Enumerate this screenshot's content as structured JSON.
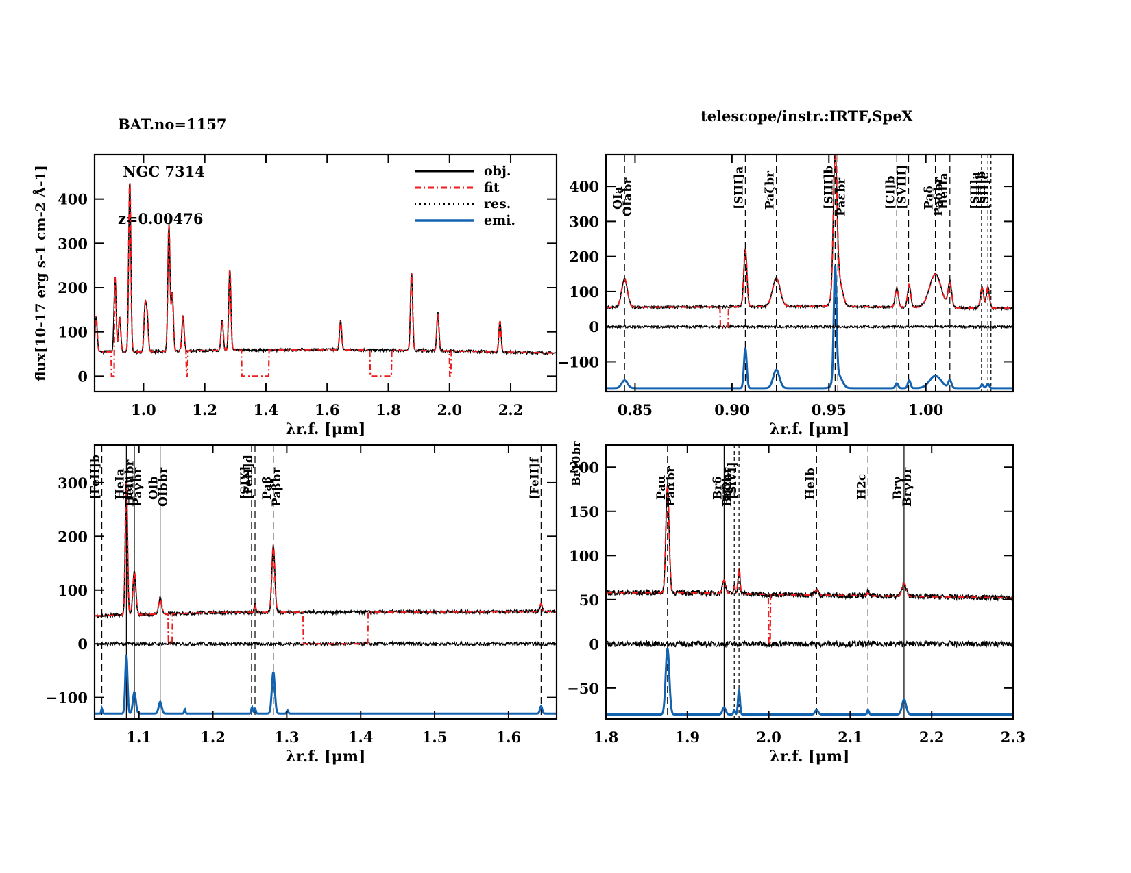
{
  "header": {
    "object_lines": [
      "BAT.no=1157",
      " NGC 7314",
      "z=0.00476"
    ],
    "telescope": "telescope/instr.:IRTF,SpeX"
  },
  "colors": {
    "obj": "#000000",
    "fit": "#ee1c1c",
    "res": "#000000",
    "emi": "#1463b0",
    "axis": "#000000"
  },
  "chart_data": [
    {
      "id": "full",
      "type": "line",
      "title": "",
      "xlabel": "λ_r.f. [μm]",
      "ylabel": "flux[10^-17 erg s^-1 cm^-2 Å^-1]",
      "xlim": [
        0.84,
        2.35
      ],
      "ylim": [
        -35,
        500
      ],
      "xticks": [
        1.0,
        1.2,
        1.4,
        1.6,
        1.8,
        2.0,
        2.2
      ],
      "xtick_labels": [
        "1.0",
        "1.2",
        "1.4",
        "1.6",
        "1.8",
        "2.0",
        "2.2"
      ],
      "yticks": [
        0,
        100,
        200,
        300,
        400
      ],
      "ytick_labels": [
        "0",
        "100",
        "200",
        "300",
        "400"
      ],
      "legend": {
        "placement": "top-right",
        "entries": [
          "obj.",
          "fit",
          "res.",
          "emi."
        ]
      },
      "continuum": [
        [
          0.84,
          55
        ],
        [
          1.0,
          55
        ],
        [
          1.2,
          58
        ],
        [
          1.6,
          60
        ],
        [
          2.0,
          57
        ],
        [
          2.35,
          52
        ]
      ],
      "peaks": [
        [
          0.845,
          80
        ],
        [
          0.907,
          168
        ],
        [
          0.922,
          80
        ],
        [
          0.955,
          390
        ],
        [
          1.005,
          100
        ],
        [
          1.012,
          80
        ],
        [
          1.083,
          285
        ],
        [
          1.094,
          130
        ],
        [
          1.129,
          80
        ],
        [
          1.257,
          70
        ],
        [
          1.282,
          185
        ],
        [
          1.644,
          65
        ],
        [
          1.876,
          178
        ],
        [
          1.962,
          85
        ],
        [
          2.165,
          70
        ]
      ],
      "fit_gaps": [
        [
          0.895,
          0.905
        ],
        [
          1.14,
          1.145
        ],
        [
          1.32,
          1.41
        ],
        [
          1.74,
          1.81
        ],
        [
          2.0,
          2.005
        ]
      ],
      "series": [
        {
          "name": "obj.",
          "style": "solid"
        },
        {
          "name": "fit",
          "style": "dashdot"
        },
        {
          "name": "res.",
          "style": "dotted"
        },
        {
          "name": "emi.",
          "style": "solid"
        }
      ]
    },
    {
      "id": "z-band",
      "type": "line",
      "xlabel": "λ_r.f. [μm]",
      "xlim": [
        0.835,
        1.045
      ],
      "ylim": [
        -185,
        490
      ],
      "xticks": [
        0.85,
        0.9,
        0.95,
        1.0
      ],
      "xtick_labels": [
        "0.85",
        "0.90",
        "0.95",
        "1.00"
      ],
      "yticks": [
        -100,
        0,
        100,
        200,
        300,
        400
      ],
      "ytick_labels": [
        "−100",
        "0",
        "100",
        "200",
        "300",
        "400"
      ],
      "continuum": [
        [
          0.835,
          55
        ],
        [
          0.95,
          58
        ],
        [
          1.045,
          52
        ]
      ],
      "emi_base": -175,
      "peaks": [
        [
          0.8446,
          80,
          0.0015
        ],
        [
          0.9069,
          165,
          0.0008
        ],
        [
          0.9229,
          80,
          0.002
        ],
        [
          0.9532,
          380,
          0.0009
        ],
        [
          0.9546,
          90,
          0.002
        ],
        [
          0.985,
          55,
          0.0008
        ],
        [
          0.9914,
          65,
          0.0008
        ],
        [
          1.0049,
          95,
          0.003
        ],
        [
          1.0124,
          70,
          0.0009
        ],
        [
          1.029,
          58,
          0.0008
        ],
        [
          1.032,
          60,
          0.0008
        ]
      ],
      "emi_peaks": [
        [
          0.8446,
          22,
          0.0015
        ],
        [
          0.9069,
          115,
          0.0007
        ],
        [
          0.9229,
          52,
          0.0016
        ],
        [
          0.9532,
          320,
          0.0007
        ],
        [
          0.9546,
          40,
          0.002
        ],
        [
          0.985,
          14,
          0.0007
        ],
        [
          0.9914,
          22,
          0.0007
        ],
        [
          1.0049,
          35,
          0.003
        ],
        [
          1.0124,
          22,
          0.0008
        ],
        [
          1.029,
          10,
          0.0007
        ],
        [
          1.032,
          12,
          0.0007
        ]
      ],
      "fit_gaps": [
        [
          0.894,
          0.898
        ]
      ],
      "lines": [
        {
          "x": 0.8446,
          "label": "OIa",
          "dash": "long"
        },
        {
          "x": 0.8446,
          "label": "OIa_br",
          "dash": "none",
          "offset": 1
        },
        {
          "x": 0.9069,
          "label": "[SIII]a",
          "dash": "long"
        },
        {
          "x": 0.9229,
          "label": "Paζ_br",
          "dash": "long"
        },
        {
          "x": 0.9532,
          "label": "[SIII]b",
          "dash": "long"
        },
        {
          "x": 0.9546,
          "label": "Paε_br",
          "dash": "long",
          "offset": 1
        },
        {
          "x": 0.985,
          "label": "[CI]b",
          "dash": "long"
        },
        {
          "x": 0.9911,
          "label": "[SVIII]",
          "dash": "long"
        },
        {
          "x": 1.0049,
          "label": "Paδ",
          "dash": "long"
        },
        {
          "x": 1.0049,
          "label": "Paδ_br",
          "dash": "none",
          "offset": 1
        },
        {
          "x": 1.0124,
          "label": "HeIIa",
          "dash": "long"
        },
        {
          "x": 1.0287,
          "label": "[SII]a",
          "dash": "short"
        },
        {
          "x": 1.032,
          "label": "[SII]b",
          "dash": "short"
        },
        {
          "x": 1.0336,
          "label": "[SII]c",
          "dash": "short"
        }
      ]
    },
    {
      "id": "j-band",
      "type": "line",
      "xlabel": "λ_r.f. [μm]",
      "xlim": [
        1.04,
        1.665
      ],
      "ylim": [
        -140,
        370
      ],
      "xticks": [
        1.1,
        1.2,
        1.3,
        1.4,
        1.5,
        1.6
      ],
      "xtick_labels": [
        "1.1",
        "1.2",
        "1.3",
        "1.4",
        "1.5",
        "1.6"
      ],
      "yticks": [
        -100,
        0,
        100,
        200,
        300
      ],
      "ytick_labels": [
        "−100",
        "0",
        "100",
        "200",
        "300"
      ],
      "continuum": [
        [
          1.04,
          52
        ],
        [
          1.2,
          58
        ],
        [
          1.665,
          60
        ]
      ],
      "emi_base": -130,
      "peaks": [
        [
          1.083,
          250,
          0.0015
        ],
        [
          1.0938,
          80,
          0.002
        ],
        [
          1.1287,
          30,
          0.002
        ],
        [
          1.257,
          15,
          0.001
        ],
        [
          1.2818,
          125,
          0.002
        ],
        [
          1.644,
          15,
          0.0015
        ]
      ],
      "emi_peaks": [
        [
          1.0498,
          10,
          0.0008
        ],
        [
          1.083,
          110,
          0.0015
        ],
        [
          1.0938,
          40,
          0.002
        ],
        [
          1.1287,
          22,
          0.002
        ],
        [
          1.162,
          8,
          0.0008
        ],
        [
          1.253,
          12,
          0.001
        ],
        [
          1.257,
          10,
          0.001
        ],
        [
          1.2818,
          78,
          0.002
        ],
        [
          1.301,
          6,
          0.001
        ],
        [
          1.644,
          14,
          0.0015
        ]
      ],
      "fit_gaps": [
        [
          1.14,
          1.145
        ],
        [
          1.322,
          1.41
        ]
      ],
      "lines": [
        {
          "x": 1.0498,
          "label": "[FeII]b",
          "dash": "long"
        },
        {
          "x": 1.083,
          "label": "HeIa",
          "dash": "solid"
        },
        {
          "x": 1.083,
          "label": "HeIa_br",
          "dash": "none",
          "offset": 1
        },
        {
          "x": 1.0938,
          "label": "Paγ",
          "dash": "solid"
        },
        {
          "x": 1.0938,
          "label": "Paγ_br",
          "dash": "none",
          "offset": 1
        },
        {
          "x": 1.1287,
          "label": "OIb",
          "dash": "solid"
        },
        {
          "x": 1.1287,
          "label": "OIb_br",
          "dash": "none",
          "offset": 1
        },
        {
          "x": 1.2523,
          "label": "[SIX]",
          "dash": "long"
        },
        {
          "x": 1.257,
          "label": "[FeII]d",
          "dash": "long"
        },
        {
          "x": 1.2818,
          "label": "Paβ",
          "dash": "long"
        },
        {
          "x": 1.2818,
          "label": "Paβ_br",
          "dash": "none",
          "offset": 1
        },
        {
          "x": 1.644,
          "label": "[FeII]f",
          "dash": "long"
        }
      ]
    },
    {
      "id": "k-band",
      "type": "line",
      "xlabel": "λ_r.f. [μm]",
      "xlim": [
        1.8,
        2.3
      ],
      "ylim": [
        -85,
        225
      ],
      "xticks": [
        1.8,
        1.9,
        2.0,
        2.1,
        2.2,
        2.3
      ],
      "xtick_labels": [
        "1.8",
        "1.9",
        "2.0",
        "2.1",
        "2.2",
        "2.3"
      ],
      "yticks": [
        -50,
        0,
        50,
        100,
        150,
        200
      ],
      "ytick_labels": [
        "−50",
        "0",
        "50",
        "100",
        "150",
        "200"
      ],
      "continuum": [
        [
          1.8,
          58
        ],
        [
          1.9,
          58
        ],
        [
          2.0,
          56
        ],
        [
          2.3,
          52
        ]
      ],
      "emi_base": -80,
      "peaks": [
        [
          1.8756,
          120,
          0.002
        ],
        [
          1.9451,
          15,
          0.002
        ],
        [
          1.9576,
          8,
          0.001
        ],
        [
          1.9634,
          30,
          0.0012
        ],
        [
          2.0587,
          6,
          0.002
        ],
        [
          2.1218,
          5,
          0.0012
        ],
        [
          2.1661,
          15,
          0.0025
        ]
      ],
      "emi_peaks": [
        [
          1.8756,
          75,
          0.0022
        ],
        [
          1.9451,
          8,
          0.002
        ],
        [
          1.9576,
          5,
          0.001
        ],
        [
          1.9634,
          28,
          0.0012
        ],
        [
          2.0587,
          5,
          0.002
        ],
        [
          2.1218,
          5,
          0.0012
        ],
        [
          2.1661,
          17,
          0.0025
        ]
      ],
      "fit_gaps": [
        [
          2.0,
          2.002
        ]
      ],
      "lines": [
        {
          "x": 1.8756,
          "label": "Paα",
          "dash": "long"
        },
        {
          "x": 1.8756,
          "label": "Paα_br",
          "dash": "none",
          "offset": 1
        },
        {
          "x": 1.9451,
          "label": "Brδ",
          "dash": "solid"
        },
        {
          "x": 1.9451,
          "label": "Brδ_br",
          "dash": "none",
          "offset": 1
        },
        {
          "x": 1.9576,
          "label": "H2e",
          "dash": "short"
        },
        {
          "x": 1.9634,
          "label": "[SiVI]",
          "dash": "short"
        },
        {
          "x": 2.0587,
          "label": "HeIb",
          "dash": "long"
        },
        {
          "x": 2.1218,
          "label": "H2c",
          "dash": "long"
        },
        {
          "x": 2.1661,
          "label": "Brγ",
          "dash": "solid"
        },
        {
          "x": 2.1661,
          "label": "Brγ_br",
          "dash": "none",
          "offset": 1
        }
      ],
      "edge_label": "Br10_br"
    }
  ]
}
